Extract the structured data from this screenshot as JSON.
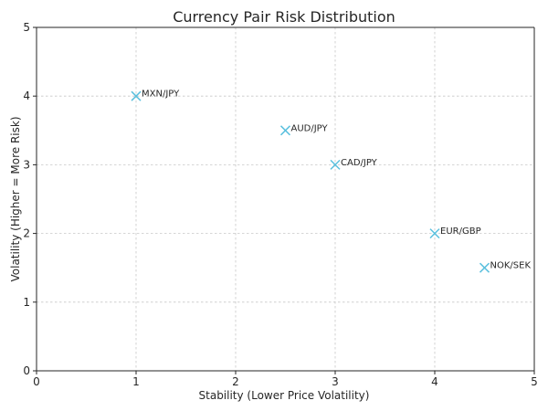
{
  "chart_data": {
    "type": "scatter",
    "title": "Currency Pair Risk Distribution",
    "xlabel": "Stability (Lower Price Volatility)",
    "ylabel": "Volatility (Higher = More Risk)",
    "xlim": [
      0,
      5
    ],
    "ylim": [
      0,
      5
    ],
    "xticks": [
      "0",
      "1",
      "2",
      "3",
      "4",
      "5"
    ],
    "yticks": [
      "0",
      "1",
      "2",
      "3",
      "4",
      "5"
    ],
    "grid": true,
    "marker": "x",
    "marker_color": "#5bc0de",
    "points": [
      {
        "label": "MXN/JPY",
        "x": 1.0,
        "y": 4.0
      },
      {
        "label": "AUD/JPY",
        "x": 2.5,
        "y": 3.5
      },
      {
        "label": "CAD/JPY",
        "x": 3.0,
        "y": 3.0
      },
      {
        "label": "EUR/GBP",
        "x": 4.0,
        "y": 2.0
      },
      {
        "label": "NOK/SEK",
        "x": 4.5,
        "y": 1.5
      }
    ]
  }
}
